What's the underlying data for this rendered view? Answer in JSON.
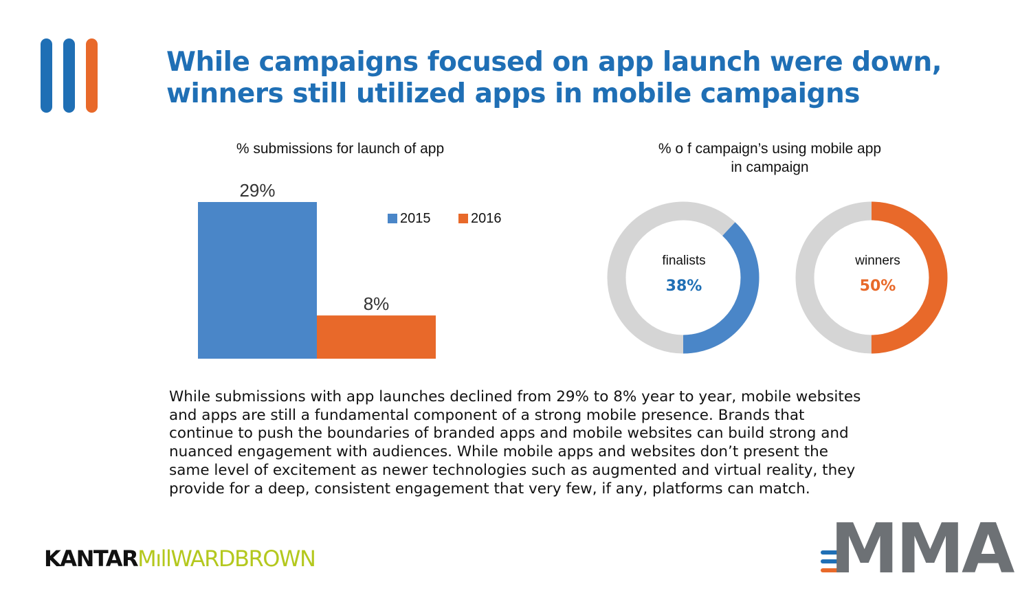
{
  "title": {
    "line1": "While campaigns focused on app launch were down,",
    "line2": "winners still utilized apps in mobile campaigns"
  },
  "colors": {
    "brand_blue": "#1f6fb5",
    "bar_blue": "#4a86c8",
    "orange": "#e8692a",
    "ring_gray": "#d5d5d5"
  },
  "chart_data": [
    {
      "type": "bar",
      "title": "% submissions for launch of app",
      "categories": [
        ""
      ],
      "series": [
        {
          "name": "2015",
          "values": [
            29
          ],
          "labels": [
            "29%"
          ],
          "color": "#4a86c8"
        },
        {
          "name": "2016",
          "values": [
            8
          ],
          "labels": [
            "8%"
          ],
          "color": "#e8692a"
        }
      ],
      "ylim": [
        0,
        29
      ],
      "legend": "top-right",
      "grid": false
    },
    {
      "type": "pie",
      "title": "% o f campaign’s using mobile app in campaign",
      "title_lines": [
        "% o f campaign’s using mobile app",
        "in campaign"
      ],
      "donuts": [
        {
          "label": "finalists",
          "value": 38,
          "value_label": "38%",
          "color": "#4a86c8",
          "remainder_color": "#d5d5d5"
        },
        {
          "label": "winners",
          "value": 50,
          "value_label": "50%",
          "color": "#e8692a",
          "remainder_color": "#d5d5d5"
        }
      ]
    }
  ],
  "body_lines": [
    "While submissions with app launches declined from 29% to 8% year to year, mobile websites",
    "and apps are still a fundamental component of a strong mobile presence. Brands that",
    "continue to push the boundaries of branded apps and mobile websites can build strong and",
    "nuanced engagement with audiences. While mobile apps and websites don’t present the",
    "same level of excitement as newer technologies such as augmented and virtual reality, they",
    "provide for a deep, consistent engagement that very few, if any, platforms can match."
  ],
  "logos": {
    "kantar_part1": "KANTAR",
    "kantar_part2": "MıllWARDBROWN",
    "mma": "MMA"
  }
}
